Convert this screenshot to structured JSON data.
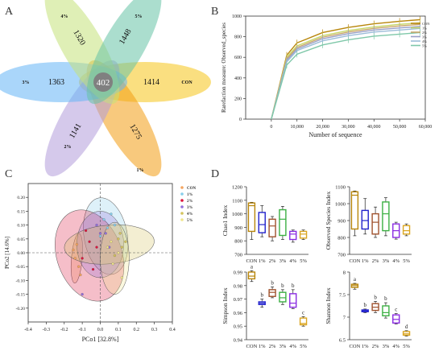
{
  "colors": {
    "con": "#b8860b",
    "p1": "#2222cc",
    "p2": "#a0522d",
    "p3": "#3cb043",
    "p4": "#8a2be2",
    "p5": "#daa520"
  },
  "chart_data": [
    {
      "panel": "A",
      "type": "venn",
      "sets": [
        {
          "label": "CON",
          "unique": 1414,
          "color": "#f5c518"
        },
        {
          "label": "1%",
          "unique": 1275,
          "color": "#f39c12"
        },
        {
          "label": "2%",
          "unique": 1141,
          "color": "#b39ddb"
        },
        {
          "label": "3%",
          "unique": 1363,
          "color": "#64b5f6"
        },
        {
          "label": "4%",
          "unique": 1320,
          "color": "#c5e17a"
        },
        {
          "label": "5%",
          "unique": 1448,
          "color": "#66c2a5"
        }
      ],
      "shared": 402
    },
    {
      "panel": "B",
      "type": "line",
      "xlabel": "Number of sequence",
      "ylabel": "Rarefaction measure: Observed_species",
      "xlim": [
        -10000,
        60000
      ],
      "ylim": [
        0,
        1000
      ],
      "xticks": [
        0,
        10000,
        20000,
        30000,
        40000,
        50000,
        60000
      ],
      "xtick_labels": [
        "0",
        "10,000",
        "20,000",
        "30,000",
        "40,000",
        "50,000",
        "60,000"
      ],
      "yticks": [
        0,
        200,
        400,
        600,
        800,
        1000
      ],
      "x": [
        0,
        6000,
        10000,
        20000,
        30000,
        40000,
        50000,
        58000
      ],
      "series": [
        {
          "name": "CON",
          "color": "#b8860b",
          "values": [
            0,
            620,
            740,
            840,
            890,
            925,
            950,
            965
          ]
        },
        {
          "name": "1%",
          "color": "#c8d86a",
          "values": [
            0,
            600,
            710,
            810,
            860,
            895,
            920,
            935
          ]
        },
        {
          "name": "2%",
          "color": "#c9a66b",
          "values": [
            0,
            585,
            695,
            795,
            845,
            880,
            905,
            920
          ]
        },
        {
          "name": "3%",
          "color": "#9aa0c8",
          "values": [
            0,
            570,
            680,
            780,
            830,
            865,
            885,
            900
          ]
        },
        {
          "name": "4%",
          "color": "#9bbcd8",
          "values": [
            0,
            555,
            665,
            760,
            810,
            845,
            865,
            880
          ]
        },
        {
          "name": "5%",
          "color": "#7fc8a9",
          "values": [
            0,
            525,
            630,
            720,
            770,
            805,
            825,
            840
          ]
        }
      ],
      "legend": "top-right"
    },
    {
      "panel": "C",
      "type": "scatter",
      "xlabel": "PCo1 [32.8%]",
      "ylabel": "PCo2 [14.6%]",
      "xlim": [
        -0.4,
        0.4
      ],
      "ylim": [
        -0.25,
        0.25
      ],
      "xticks": [
        -0.4,
        -0.3,
        -0.2,
        -0.1,
        0.0,
        0.1,
        0.2,
        0.3,
        0.4
      ],
      "xtick_labels": [
        "-0.4",
        "-0.3",
        "-0.2",
        "-0.1",
        "0.0",
        "0.1",
        "0.2",
        "0.3",
        "0.4"
      ],
      "yticks": [
        -0.2,
        -0.15,
        -0.1,
        -0.05,
        0,
        0.05,
        0.1,
        0.15,
        0.2
      ],
      "ytick_labels": [
        "-0.20",
        "-0.15",
        "-0.10",
        "-0.05",
        "0.00",
        "0.05",
        "0.10",
        "0.15",
        "0.20"
      ],
      "series": [
        {
          "name": "CON",
          "color": "#f4a460",
          "points": [
            [
              -0.14,
              -0.02
            ],
            [
              -0.12,
              -0.05
            ],
            [
              -0.13,
              0.03
            ],
            [
              -0.11,
              -0.08
            ],
            [
              -0.15,
              0.01
            ]
          ],
          "ellipse": {
            "cx": -0.13,
            "cy": -0.02,
            "rx": 0.03,
            "ry": 0.09,
            "rot": 5
          }
        },
        {
          "name": "1%",
          "color": "#87ceeb",
          "points": [
            [
              0.02,
              0.12
            ],
            [
              0.04,
              0.09
            ],
            [
              0.06,
              0.14
            ],
            [
              0.0,
              0.06
            ],
            [
              0.08,
              0.1
            ]
          ],
          "ellipse": {
            "cx": 0.03,
            "cy": 0.06,
            "rx": 0.12,
            "ry": 0.14,
            "rot": -10
          }
        },
        {
          "name": "2%",
          "color": "#dc143c",
          "points": [
            [
              -0.06,
              0.04
            ],
            [
              -0.1,
              -0.02
            ],
            [
              -0.04,
              -0.06
            ],
            [
              -0.08,
              0.08
            ],
            [
              -0.02,
              0.02
            ]
          ],
          "ellipse": {
            "cx": -0.06,
            "cy": -0.01,
            "rx": 0.18,
            "ry": 0.17,
            "rot": -20
          }
        },
        {
          "name": "3%",
          "color": "#9370db",
          "points": [
            [
              0.0,
              0.07
            ],
            [
              0.03,
              0.07
            ],
            [
              -0.02,
              0.1
            ],
            [
              0.05,
              0.02
            ],
            [
              -0.1,
              -0.15
            ]
          ],
          "ellipse": {
            "cx": 0.0,
            "cy": 0.03,
            "rx": 0.13,
            "ry": 0.12,
            "rot": 0
          }
        },
        {
          "name": "4%",
          "color": "#d4c35c",
          "points": [
            [
              0.1,
              0.05
            ],
            [
              0.12,
              0.02
            ],
            [
              0.08,
              -0.01
            ],
            [
              0.14,
              0.04
            ],
            [
              0.11,
              0.07
            ]
          ],
          "ellipse": {
            "cx": 0.05,
            "cy": 0.03,
            "rx": 0.25,
            "ry": 0.07,
            "rot": -5
          }
        },
        {
          "name": "5%",
          "color": "#f0e68c",
          "points": [
            [
              0.04,
              0.02
            ],
            [
              0.07,
              -0.04
            ],
            [
              0.1,
              0.0
            ],
            [
              0.06,
              0.04
            ],
            [
              0.12,
              -0.09
            ]
          ],
          "ellipse": {
            "cx": 0.08,
            "cy": -0.02,
            "rx": 0.08,
            "ry": 0.13,
            "rot": 0
          }
        }
      ],
      "legend": "top-right"
    },
    {
      "panel": "D",
      "type": "box",
      "categories": [
        "CON",
        "1%",
        "2%",
        "3%",
        "4%",
        "5%"
      ],
      "plots": [
        {
          "ylabel": "Chao1 Index",
          "ylim": [
            700,
            1200
          ],
          "yticks": [
            700,
            800,
            900,
            1000,
            1100,
            1200
          ],
          "boxes": [
            [
              810,
              870,
              1060,
              1080,
              1085
            ],
            [
              830,
              860,
              920,
              1010,
              1060
            ],
            [
              800,
              830,
              910,
              960,
              980
            ],
            [
              810,
              840,
              960,
              1030,
              1055
            ],
            [
              790,
              810,
              850,
              870,
              880
            ],
            [
              810,
              820,
              850,
              870,
              880
            ]
          ],
          "letters": [
            "",
            "",
            "",
            "",
            "",
            ""
          ]
        },
        {
          "ylabel": "Observed Species Index",
          "ylim": [
            700,
            1100
          ],
          "yticks": [
            700,
            800,
            900,
            1000,
            1100
          ],
          "boxes": [
            [
              810,
              850,
              1050,
              1070,
              1075
            ],
            [
              820,
              850,
              900,
              960,
              1030
            ],
            [
              800,
              820,
              890,
              940,
              980
            ],
            [
              810,
              840,
              940,
              1010,
              1035
            ],
            [
              790,
              800,
              840,
              880,
              890
            ],
            [
              810,
              820,
              840,
              870,
              880
            ]
          ],
          "letters": [
            "",
            "",
            "",
            "",
            "",
            ""
          ]
        },
        {
          "ylabel": "Simpson Index",
          "ylim": [
            0.94,
            0.99
          ],
          "yticks": [
            0.94,
            0.95,
            0.96,
            0.97,
            0.98,
            0.99
          ],
          "boxes": [
            [
              0.983,
              0.985,
              0.987,
              0.99,
              0.991
            ],
            [
              0.964,
              0.966,
              0.967,
              0.968,
              0.97
            ],
            [
              0.971,
              0.972,
              0.975,
              0.977,
              0.979
            ],
            [
              0.966,
              0.968,
              0.971,
              0.975,
              0.977
            ],
            [
              0.963,
              0.964,
              0.967,
              0.974,
              0.977
            ],
            [
              0.95,
              0.951,
              0.952,
              0.956,
              0.957
            ]
          ],
          "letters": [
            "a",
            "b",
            "b",
            "b",
            "b",
            "c"
          ]
        },
        {
          "ylabel": "Shannon Index",
          "ylim": [
            6.5,
            8.0
          ],
          "yticks": [
            6.5,
            7.0,
            7.5,
            8.0
          ],
          "boxes": [
            [
              7.62,
              7.66,
              7.7,
              7.73,
              7.75
            ],
            [
              7.1,
              7.12,
              7.14,
              7.16,
              7.18
            ],
            [
              7.1,
              7.15,
              7.22,
              7.3,
              7.35
            ],
            [
              6.98,
              7.03,
              7.1,
              7.25,
              7.32
            ],
            [
              6.85,
              6.87,
              6.95,
              7.05,
              7.08
            ],
            [
              6.58,
              6.6,
              6.63,
              6.68,
              6.7
            ]
          ],
          "letters": [
            "a",
            "b",
            "b",
            "b",
            "c",
            "d"
          ]
        }
      ]
    }
  ],
  "panel_letters": [
    "A",
    "B",
    "C",
    "D"
  ]
}
